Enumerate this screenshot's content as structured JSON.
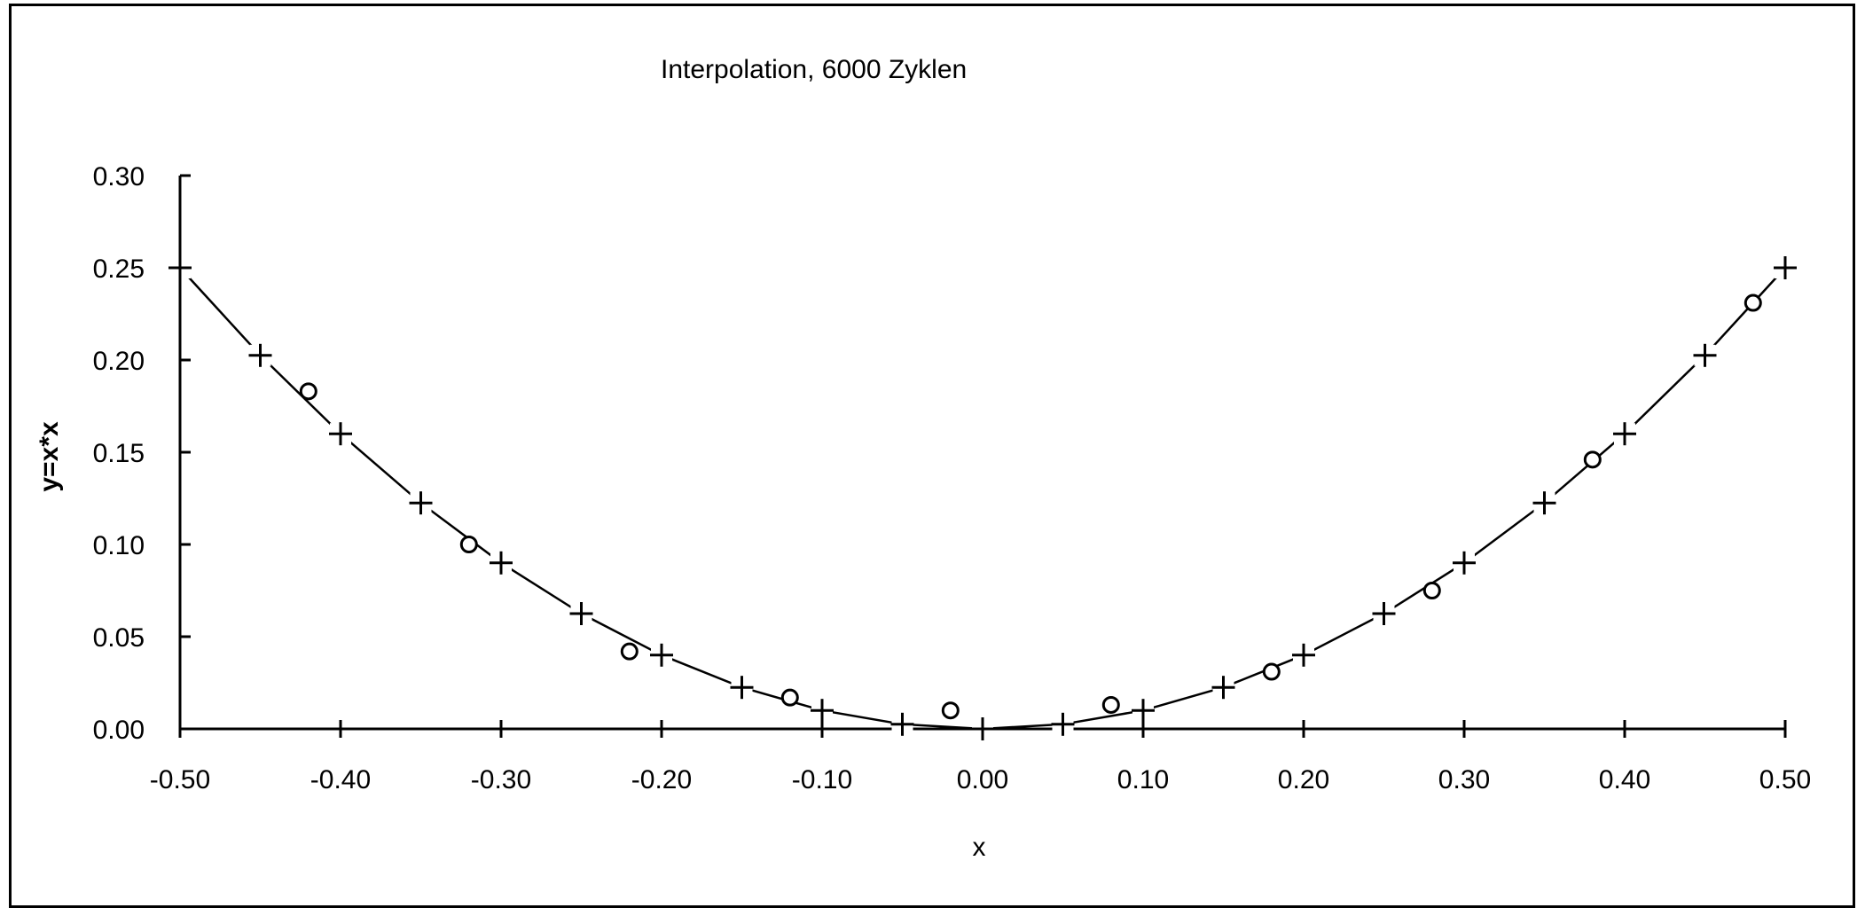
{
  "chart_data": {
    "type": "scatter",
    "title": "Interpolation, 6000 Zyklen",
    "xlabel": "x",
    "ylabel": "y=x*x",
    "xlim": [
      -0.5,
      0.5
    ],
    "ylim": [
      0,
      0.3
    ],
    "grid": false,
    "x_ticks": [
      "-0.50",
      "-0.40",
      "-0.30",
      "-0.20",
      "-0.10",
      "0.00",
      "0.10",
      "0.20",
      "0.30",
      "0.40",
      "0.50"
    ],
    "y_ticks": [
      "0.00",
      "0.05",
      "0.10",
      "0.15",
      "0.20",
      "0.25",
      "0.30"
    ],
    "series": [
      {
        "marker": "plus",
        "line": true,
        "color": "#000000",
        "points": [
          [
            -0.5,
            0.25
          ],
          [
            -0.45,
            0.2025
          ],
          [
            -0.4,
            0.16
          ],
          [
            -0.35,
            0.1225
          ],
          [
            -0.3,
            0.09
          ],
          [
            -0.25,
            0.0625
          ],
          [
            -0.2,
            0.04
          ],
          [
            -0.15,
            0.0225
          ],
          [
            -0.1,
            0.01
          ],
          [
            -0.05,
            0.0025
          ],
          [
            0.0,
            0.0
          ],
          [
            0.05,
            0.0025
          ],
          [
            0.1,
            0.01
          ],
          [
            0.15,
            0.0225
          ],
          [
            0.2,
            0.04
          ],
          [
            0.25,
            0.0625
          ],
          [
            0.3,
            0.09
          ],
          [
            0.35,
            0.1225
          ],
          [
            0.4,
            0.16
          ],
          [
            0.45,
            0.2025
          ],
          [
            0.5,
            0.25
          ]
        ]
      },
      {
        "marker": "circle",
        "line": false,
        "color": "#000000",
        "points": [
          [
            -0.42,
            0.183
          ],
          [
            -0.32,
            0.1
          ],
          [
            -0.22,
            0.042
          ],
          [
            -0.12,
            0.017
          ],
          [
            -0.02,
            0.01
          ],
          [
            0.08,
            0.013
          ],
          [
            0.18,
            0.031
          ],
          [
            0.28,
            0.075
          ],
          [
            0.38,
            0.146
          ],
          [
            0.48,
            0.231
          ]
        ]
      }
    ]
  }
}
